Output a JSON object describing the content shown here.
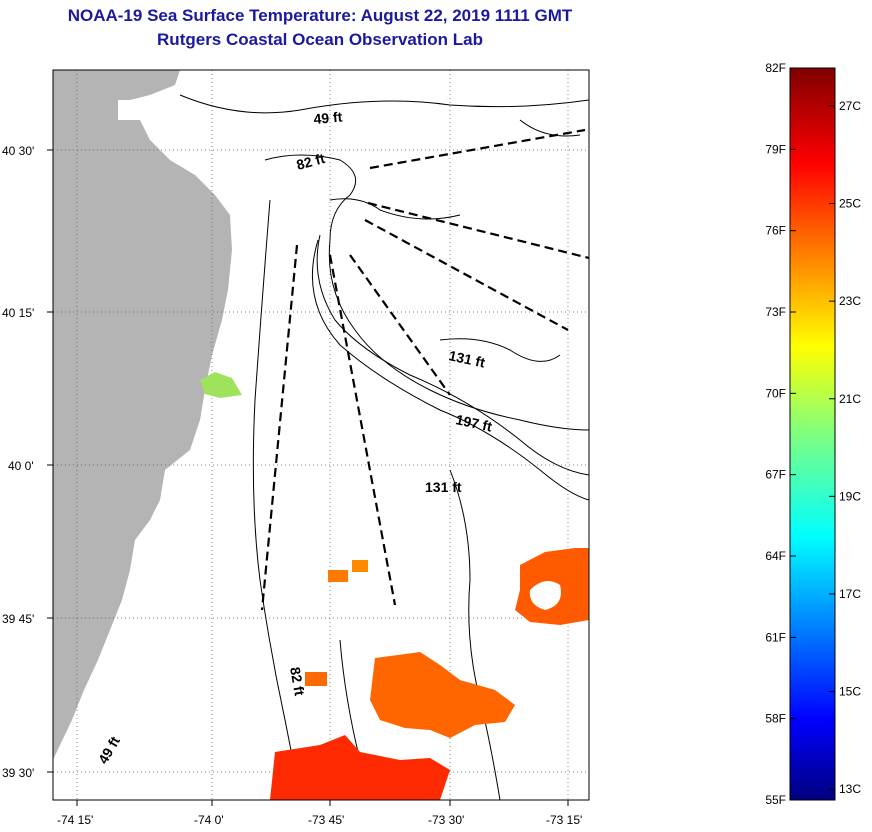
{
  "title": "NOAA-19 Sea Surface Temperature:  August 22, 2019 1111 GMT",
  "subtitle": "Rutgers Coastal Ocean Observation Lab",
  "lon_ticks": [
    {
      "value": -74.25,
      "label": "-74 15'"
    },
    {
      "value": -74.0,
      "label": "-74 0'"
    },
    {
      "value": -73.75,
      "label": "-73 45'"
    },
    {
      "value": -73.5,
      "label": "-73 30'"
    },
    {
      "value": -73.25,
      "label": "-73 15'"
    }
  ],
  "lat_ticks": [
    {
      "value": 40.5,
      "label": "40 30'"
    },
    {
      "value": 40.25,
      "label": "40 15'"
    },
    {
      "value": 40.0,
      "label": "40 0'"
    },
    {
      "value": 39.75,
      "label": "39 45'"
    },
    {
      "value": 39.5,
      "label": "39 30'"
    }
  ],
  "depth_labels": [
    {
      "text": "49 ft",
      "lon": -73.7,
      "lat": 40.57,
      "rotate": -5
    },
    {
      "text": "82 ft",
      "lon": -73.77,
      "lat": 40.48,
      "rotate": -15
    },
    {
      "text": "131 ft",
      "lon": -73.49,
      "lat": 40.17,
      "rotate": 12
    },
    {
      "text": "197 ft",
      "lon": -73.44,
      "lat": 40.07,
      "rotate": 12
    },
    {
      "text": "131 ft",
      "lon": -73.48,
      "lat": 39.995,
      "rotate": 0
    },
    {
      "text": "82 ft",
      "lon": -73.83,
      "lat": 39.635,
      "rotate": 80
    },
    {
      "text": "49 ft",
      "lon": -74.12,
      "lat": 39.52,
      "rotate": -60
    }
  ],
  "colorbar": {
    "min_f": 55,
    "max_f": 82,
    "f_labels": [
      "82F",
      "79F",
      "76F",
      "73F",
      "70F",
      "67F",
      "64F",
      "61F",
      "58F",
      "55F"
    ],
    "c_labels": [
      "27C",
      "25C",
      "23C",
      "21C",
      "19C",
      "17C",
      "15C",
      "13C"
    ],
    "c_values": [
      27,
      25,
      23,
      21,
      19,
      17,
      15,
      13
    ]
  },
  "colors": {
    "land": "#b4b4b4",
    "sst_warm": "#ff4a00",
    "sst_mid": "#ff8a00",
    "title": "#1a1aa0"
  }
}
